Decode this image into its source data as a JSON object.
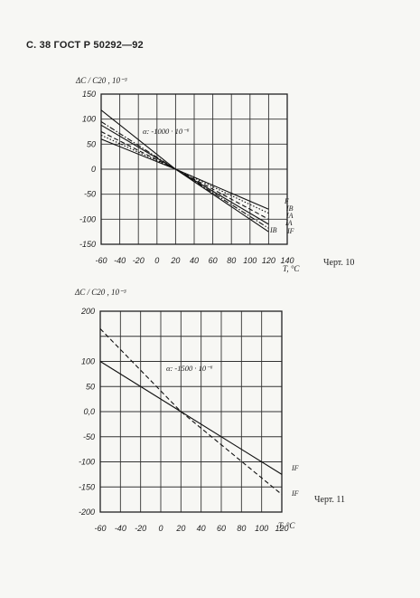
{
  "page_header": "С. 38 ГОСТ Р 50292—92",
  "chart_data": [
    {
      "type": "line",
      "caption": "Черт. 10",
      "ylabel": "ΔC / C20 , 10⁻³",
      "xlabel": "T, °C",
      "x_ticks": [
        -60,
        -40,
        -20,
        0,
        20,
        40,
        60,
        80,
        100,
        120,
        140
      ],
      "x_tick_labels": [
        "-60",
        "-40",
        "-20",
        "0",
        "20",
        "40",
        "60",
        "80",
        "100",
        "120",
        "140"
      ],
      "y_ticks": [
        150,
        100,
        50,
        0,
        -50,
        -100,
        -150
      ],
      "y_tick_labels": [
        "150",
        "100",
        "50",
        "0",
        "-50",
        "-100",
        "-150"
      ],
      "xlim": [
        -60,
        140
      ],
      "ylim": [
        -150,
        150
      ],
      "grid": true,
      "annotation": "α: -1000 · 10⁻⁶",
      "series": [
        {
          "name": "F",
          "dash": "solid",
          "x": [
            -60,
            20,
            120
          ],
          "y": [
            118,
            0,
            -125
          ]
        },
        {
          "name": "IB",
          "dash": "dash",
          "x": [
            -60,
            20,
            120
          ],
          "y": [
            75,
            0,
            -100
          ]
        },
        {
          "name": "IA",
          "dash": "solid",
          "x": [
            -60,
            20,
            120
          ],
          "y": [
            88,
            0,
            -110
          ]
        },
        {
          "name": "IA",
          "dash": "dot",
          "x": [
            -60,
            20,
            120
          ],
          "y": [
            68,
            0,
            -88
          ]
        },
        {
          "name": "IB",
          "dash": "dashdot",
          "x": [
            -60,
            20,
            120
          ],
          "y": [
            95,
            0,
            -118
          ]
        },
        {
          "name": "IF",
          "dash": "solid",
          "x": [
            -60,
            20,
            120
          ],
          "y": [
            60,
            0,
            -80
          ]
        }
      ]
    },
    {
      "type": "line",
      "caption": "Черт. 11",
      "ylabel": "ΔC / C20 , 10⁻³",
      "xlabel": "T, °C",
      "x_ticks": [
        -60,
        -40,
        -20,
        0,
        20,
        40,
        60,
        80,
        100,
        120
      ],
      "x_tick_labels": [
        "-60",
        "-40",
        "-20",
        "0",
        "20",
        "40",
        "60",
        "80",
        "100",
        "120"
      ],
      "y_ticks": [
        200,
        150,
        100,
        50,
        0,
        -50,
        -100,
        -150,
        -200
      ],
      "y_tick_labels": [
        "200",
        "",
        "100",
        "50",
        "0,0",
        "-50",
        "-100",
        "-150",
        "-200"
      ],
      "xlim": [
        -60,
        120
      ],
      "ylim": [
        -200,
        200
      ],
      "grid": true,
      "annotation": "α: -1500 · 10⁻⁶",
      "series": [
        {
          "name": "IF",
          "dash": "solid",
          "x": [
            -60,
            20,
            120
          ],
          "y": [
            100,
            0,
            -125
          ]
        },
        {
          "name": "IF",
          "dash": "dash",
          "x": [
            -60,
            20,
            120
          ],
          "y": [
            165,
            0,
            -165
          ]
        }
      ]
    }
  ]
}
